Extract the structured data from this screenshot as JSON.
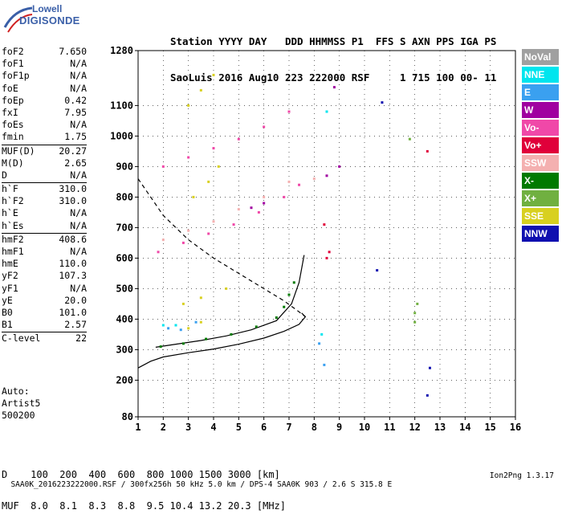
{
  "logo": {
    "line1": "Lowell",
    "line2": "DIGISONDE"
  },
  "header": {
    "line1": "Station YYYY DAY   DDD HHMMSS P1  FFS S AXN PPS IGA PS",
    "line2": "SaoLuis 2016 Aug10 223 222000 RSF     1 715 100 00- 11"
  },
  "params": {
    "group1": [
      [
        "foF2",
        "7.650"
      ],
      [
        "foF1",
        "N/A"
      ],
      [
        "foF1p",
        "N/A"
      ],
      [
        "foE",
        "N/A"
      ],
      [
        "foEp",
        "0.42"
      ],
      [
        "fxI",
        "7.95"
      ],
      [
        "foEs",
        "N/A"
      ],
      [
        "fmin",
        "1.75"
      ]
    ],
    "group2": [
      [
        "MUF(D)",
        "20.27"
      ],
      [
        "M(D)",
        "2.65"
      ],
      [
        "D",
        "N/A"
      ]
    ],
    "group3": [
      [
        "h`F",
        "310.0"
      ],
      [
        "h`F2",
        "310.0"
      ],
      [
        "h`E",
        "N/A"
      ],
      [
        "h`Es",
        "N/A"
      ]
    ],
    "group4": [
      [
        "hmF2",
        "408.6"
      ],
      [
        "hmF1",
        "N/A"
      ],
      [
        "hmE",
        "110.0"
      ],
      [
        "yF2",
        "107.3"
      ],
      [
        "yF1",
        "N/A"
      ],
      [
        "yE",
        "20.0"
      ],
      [
        "B0",
        "101.0"
      ],
      [
        "B1",
        "2.57"
      ]
    ],
    "group5": [
      [
        "C-level",
        "22"
      ]
    ]
  },
  "auto": {
    "line1": "Auto:",
    "line2": "Artist5",
    "line3": "500200"
  },
  "legend": [
    {
      "label": "NoVal",
      "bg": "#a0a0a0",
      "fg": "#ffffff"
    },
    {
      "label": "NNE",
      "bg": "#00e5ee",
      "fg": "#ffffff"
    },
    {
      "label": "E",
      "bg": "#3aa0f0",
      "fg": "#ffffff"
    },
    {
      "label": "W",
      "bg": "#a000a0",
      "fg": "#ffffff"
    },
    {
      "label": "Vo-",
      "bg": "#f048a8",
      "fg": "#ffffff"
    },
    {
      "label": "Vo+",
      "bg": "#e0003a",
      "fg": "#ffffff"
    },
    {
      "label": "SSW",
      "bg": "#f4b0b0",
      "fg": "#ffffff"
    },
    {
      "label": "X-",
      "bg": "#007a00",
      "fg": "#ffffff"
    },
    {
      "label": "X+",
      "bg": "#70b040",
      "fg": "#ffffff"
    },
    {
      "label": "SSE",
      "bg": "#d8d020",
      "fg": "#ffffff"
    },
    {
      "label": "NNW",
      "bg": "#1010b0",
      "fg": "#ffffff"
    }
  ],
  "muf": {
    "line1": "D    100  200  400  600  800 1000 1500 3000 [km]",
    "line2": "MUF  8.0  8.1  8.3  8.8  9.5 10.4 13.2 20.3 [MHz]"
  },
  "footer": {
    "text": "SAA0K_2016223222000.RSF / 300fx256h 50 kHz 5.0 km / DPS-4 SAA0K 903 / 2.6 S 315.8 E",
    "version": "Ion2Png 1.3.17"
  },
  "chart_data": {
    "type": "scatter",
    "xlim": [
      1,
      16
    ],
    "ylim": [
      80,
      1280
    ],
    "x_ticks": [
      1,
      2,
      3,
      4,
      5,
      6,
      7,
      8,
      9,
      10,
      11,
      12,
      13,
      14,
      15,
      16
    ],
    "y_ticks": [
      80,
      200,
      300,
      400,
      500,
      600,
      700,
      800,
      900,
      1000,
      1100,
      1280
    ],
    "grid": true,
    "colors": {
      "trace": "#000000",
      "dashed": "#000000"
    },
    "series": [
      {
        "type": "line",
        "points": [
          [
            1.0,
            240
          ],
          [
            1.5,
            262
          ],
          [
            2.0,
            276
          ],
          [
            3.0,
            290
          ],
          [
            4.0,
            302
          ],
          [
            5.0,
            318
          ],
          [
            6.0,
            338
          ],
          [
            6.8,
            360
          ],
          [
            7.4,
            383
          ],
          [
            7.65,
            408
          ],
          [
            7.5,
            420
          ]
        ]
      },
      {
        "type": "line",
        "dashed": true,
        "points": [
          [
            1.0,
            860
          ],
          [
            1.5,
            800
          ],
          [
            2.0,
            740
          ],
          [
            2.5,
            700
          ],
          [
            3.0,
            660
          ],
          [
            4.0,
            600
          ],
          [
            5.0,
            550
          ],
          [
            6.0,
            500
          ],
          [
            6.8,
            460
          ],
          [
            7.3,
            430
          ],
          [
            7.65,
            408
          ]
        ]
      },
      {
        "type": "line",
        "points": [
          [
            1.7,
            308
          ],
          [
            2.5,
            318
          ],
          [
            3.5,
            330
          ],
          [
            4.5,
            345
          ],
          [
            5.5,
            365
          ],
          [
            6.5,
            395
          ],
          [
            7.1,
            450
          ],
          [
            7.4,
            520
          ],
          [
            7.6,
            610
          ]
        ]
      },
      {
        "type": "scatter",
        "name": "X-",
        "color": "#007a00",
        "points": [
          [
            1.9,
            310
          ],
          [
            2.8,
            320
          ],
          [
            3.7,
            335
          ],
          [
            4.7,
            350
          ],
          [
            5.7,
            375
          ],
          [
            6.5,
            405
          ],
          [
            6.8,
            440
          ],
          [
            7.0,
            480
          ],
          [
            7.2,
            520
          ]
        ]
      },
      {
        "type": "scatter",
        "name": "Vo-",
        "color": "#f048a8",
        "points": [
          [
            1.8,
            620
          ],
          [
            2.8,
            650
          ],
          [
            3.8,
            680
          ],
          [
            4.8,
            710
          ],
          [
            5.8,
            750
          ],
          [
            6.8,
            800
          ],
          [
            7.4,
            840
          ],
          [
            2.0,
            900
          ],
          [
            3.0,
            930
          ],
          [
            4.0,
            960
          ],
          [
            5.0,
            990
          ],
          [
            6.0,
            1030
          ],
          [
            7.0,
            1080
          ]
        ]
      },
      {
        "type": "scatter",
        "name": "SSE",
        "color": "#d8d020",
        "points": [
          [
            3.0,
            1100
          ],
          [
            3.5,
            1150
          ],
          [
            4.0,
            1200
          ],
          [
            3.2,
            800
          ],
          [
            3.8,
            850
          ],
          [
            4.2,
            900
          ],
          [
            2.8,
            450
          ],
          [
            3.5,
            470
          ],
          [
            4.5,
            500
          ],
          [
            3.0,
            370
          ],
          [
            3.5,
            390
          ]
        ]
      },
      {
        "type": "scatter",
        "name": "NNE",
        "color": "#00e5ee",
        "points": [
          [
            2.0,
            380
          ],
          [
            2.5,
            380
          ],
          [
            8.3,
            350
          ],
          [
            8.5,
            1080
          ]
        ]
      },
      {
        "type": "scatter",
        "name": "E",
        "color": "#3aa0f0",
        "points": [
          [
            2.2,
            370
          ],
          [
            2.7,
            365
          ],
          [
            3.3,
            390
          ],
          [
            8.2,
            320
          ],
          [
            8.4,
            250
          ]
        ]
      },
      {
        "type": "scatter",
        "name": "W",
        "color": "#a000a0",
        "points": [
          [
            5.5,
            765
          ],
          [
            6.0,
            780
          ],
          [
            8.5,
            870
          ],
          [
            9.0,
            900
          ],
          [
            8.8,
            1160
          ]
        ]
      },
      {
        "type": "scatter",
        "name": "NNW",
        "color": "#1010b0",
        "points": [
          [
            10.7,
            1110
          ],
          [
            12.6,
            240
          ],
          [
            12.5,
            150
          ],
          [
            10.5,
            560
          ]
        ]
      },
      {
        "type": "scatter",
        "name": "X+",
        "color": "#70b040",
        "points": [
          [
            12.0,
            420
          ],
          [
            12.1,
            450
          ],
          [
            12.0,
            390
          ],
          [
            11.8,
            990
          ]
        ]
      },
      {
        "type": "scatter",
        "name": "SSW",
        "color": "#f4b0b0",
        "points": [
          [
            2.0,
            660
          ],
          [
            3.0,
            690
          ],
          [
            4.0,
            720
          ],
          [
            5.0,
            760
          ],
          [
            6.0,
            800
          ],
          [
            7.0,
            850
          ],
          [
            8.0,
            860
          ]
        ]
      },
      {
        "type": "scatter",
        "name": "Vo+",
        "color": "#e0003a",
        "points": [
          [
            8.4,
            710
          ],
          [
            8.5,
            600
          ],
          [
            8.6,
            620
          ],
          [
            12.5,
            950
          ]
        ]
      }
    ]
  }
}
